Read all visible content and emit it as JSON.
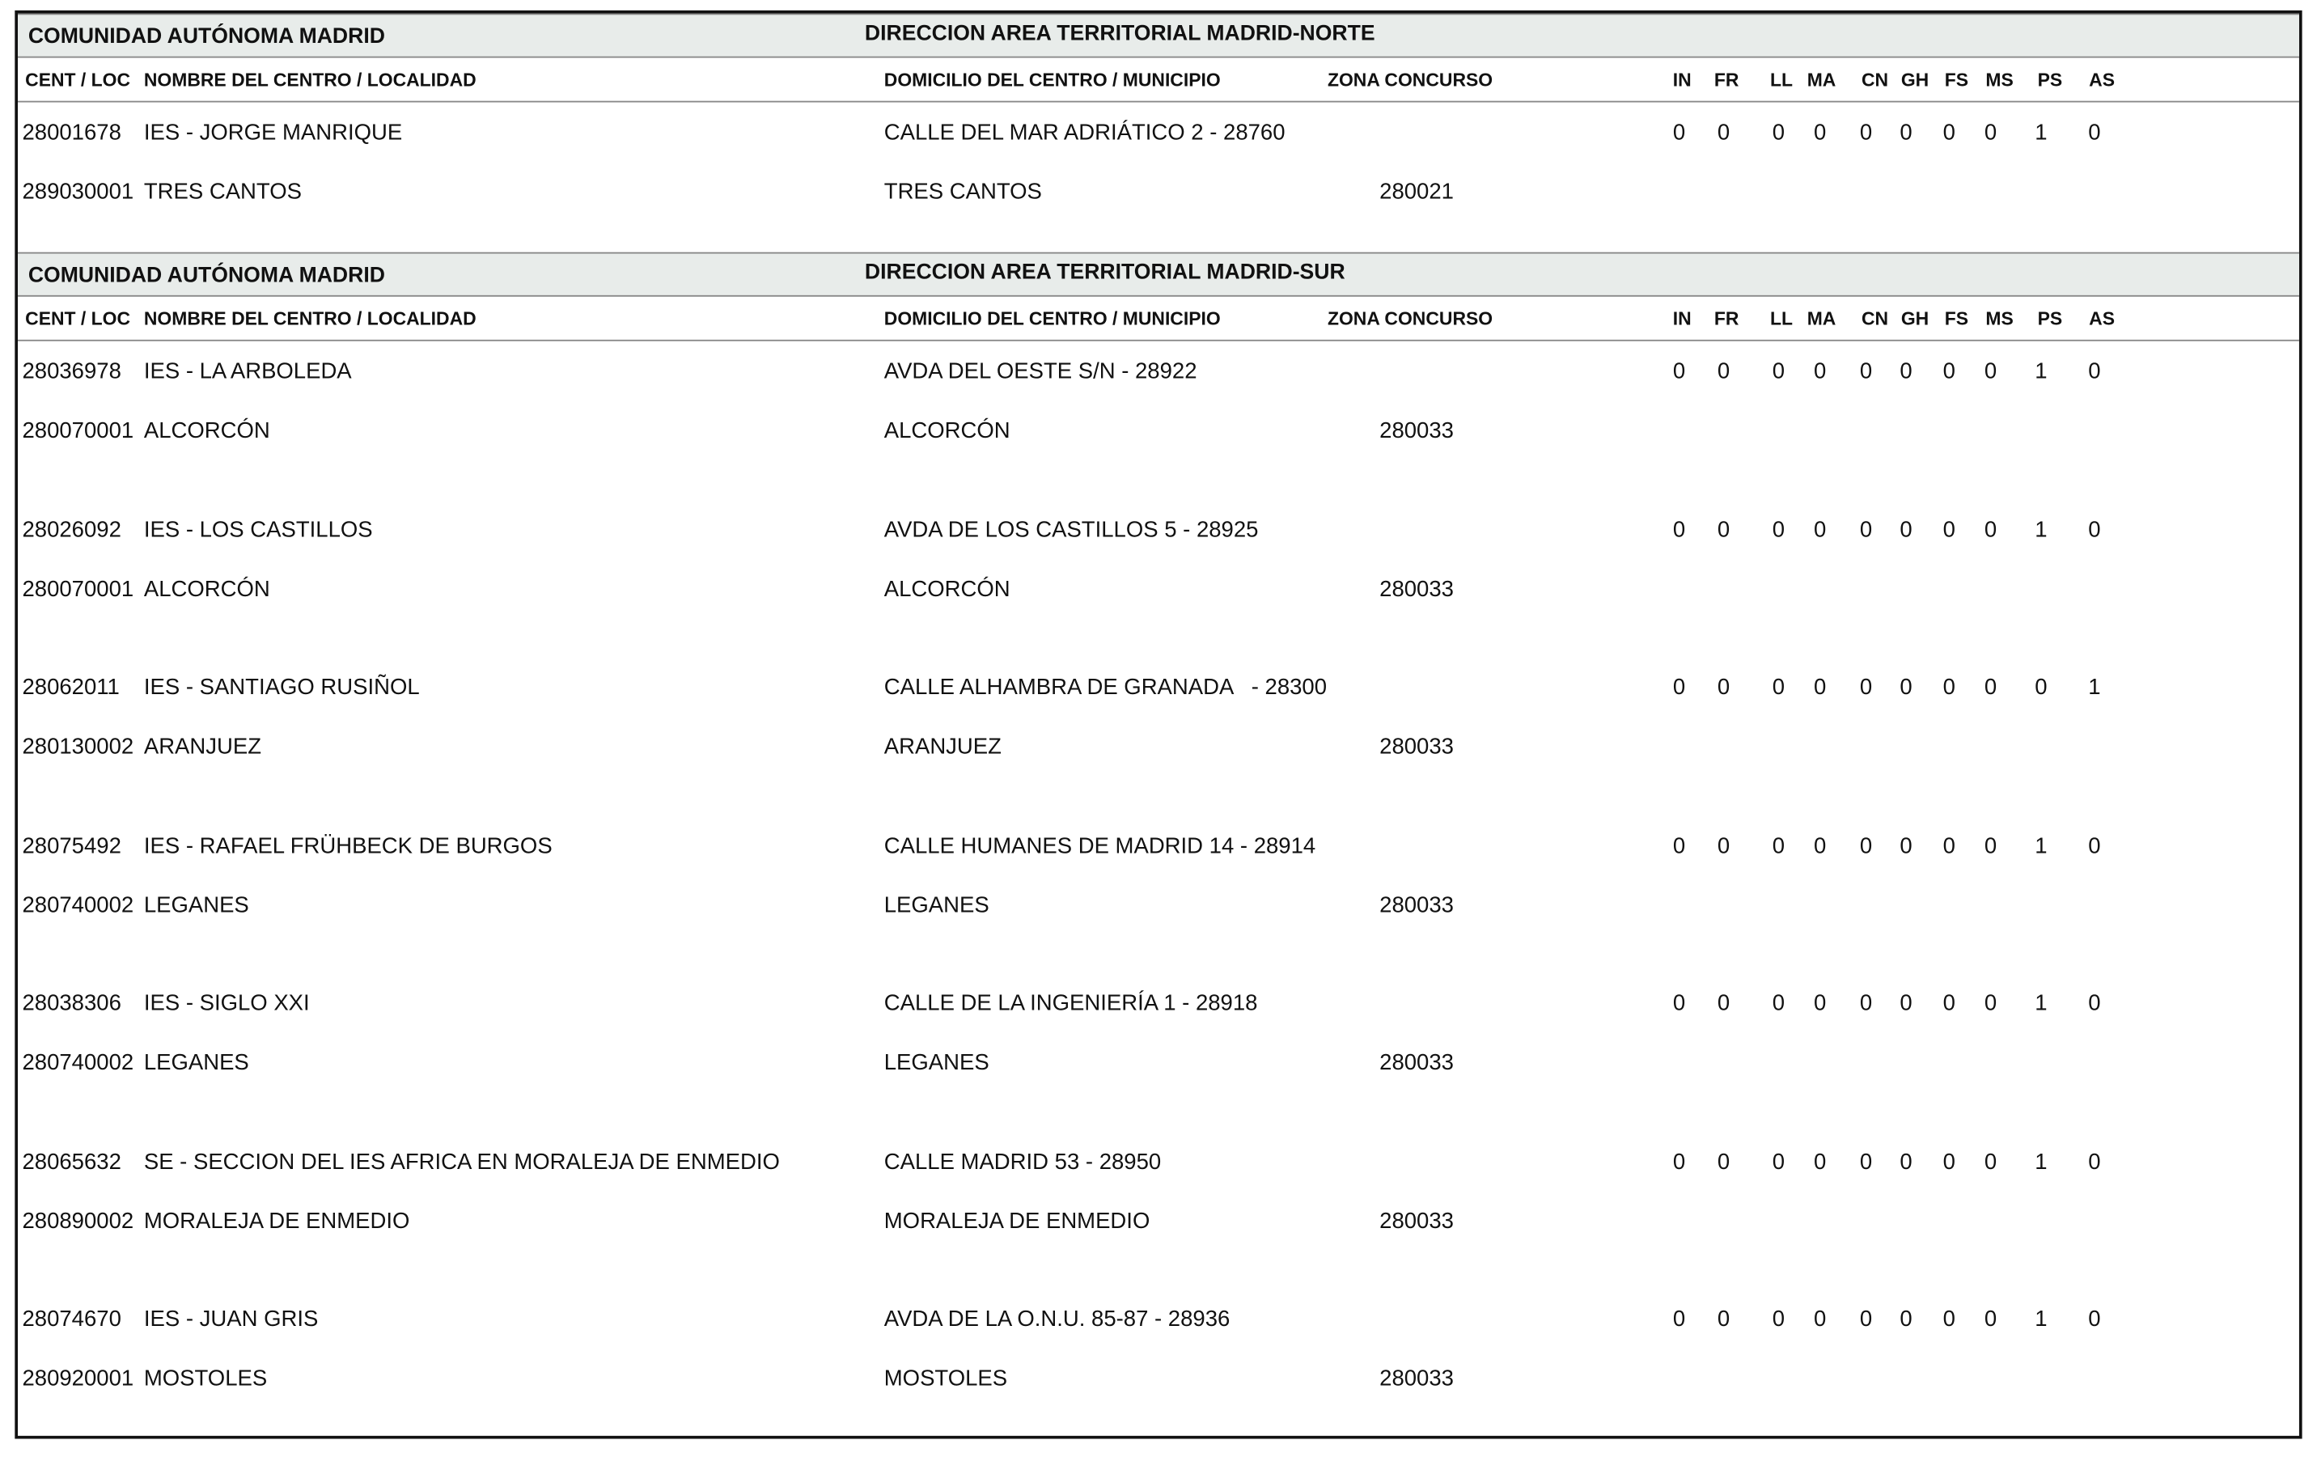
{
  "sections": [
    {
      "title": "COMUNIDAD AUTÓNOMA MADRID",
      "direction": "DIRECCION AREA TERRITORIAL MADRID-NORTE",
      "columns": [
        "CENT / LOC",
        "NOMBRE DEL CENTRO / LOCALIDAD",
        "DOMICILIO DEL CENTRO / MUNICIPIO",
        "ZONA CONCURSO",
        "IN",
        "FR",
        "LL",
        "MA",
        "CN",
        "GH",
        "FS",
        "MS",
        "PS",
        "AS"
      ],
      "entries": [
        {
          "code": "28001678",
          "name": "IES - JORGE MANRIQUE",
          "address": "CALLE DEL MAR ADRIÁTICO 2 - 28760",
          "values": [
            0,
            0,
            0,
            0,
            0,
            0,
            0,
            0,
            1,
            0
          ],
          "loc_code": "289030001",
          "locality": "TRES CANTOS",
          "municipality": "TRES CANTOS",
          "zone": "280021"
        }
      ]
    },
    {
      "title": "COMUNIDAD AUTÓNOMA MADRID",
      "direction": "DIRECCION AREA TERRITORIAL MADRID-SUR",
      "columns": [
        "CENT / LOC",
        "NOMBRE DEL CENTRO / LOCALIDAD",
        "DOMICILIO DEL CENTRO / MUNICIPIO",
        "ZONA CONCURSO",
        "IN",
        "FR",
        "LL",
        "MA",
        "CN",
        "GH",
        "FS",
        "MS",
        "PS",
        "AS"
      ],
      "entries": [
        {
          "code": "28036978",
          "name": "IES - LA ARBOLEDA",
          "address": "AVDA DEL OESTE S/N - 28922",
          "values": [
            0,
            0,
            0,
            0,
            0,
            0,
            0,
            0,
            1,
            0
          ],
          "loc_code": "280070001",
          "locality": "ALCORCÓN",
          "municipality": "ALCORCÓN",
          "zone": "280033"
        },
        {
          "code": "28026092",
          "name": "IES - LOS CASTILLOS",
          "address": "AVDA DE LOS CASTILLOS 5 - 28925",
          "values": [
            0,
            0,
            0,
            0,
            0,
            0,
            0,
            0,
            1,
            0
          ],
          "loc_code": "280070001",
          "locality": "ALCORCÓN",
          "municipality": "ALCORCÓN",
          "zone": "280033"
        },
        {
          "code": "28062011",
          "name": "IES - SANTIAGO RUSIÑOL",
          "address": "CALLE ALHAMBRA DE GRANADA   - 28300",
          "values": [
            0,
            0,
            0,
            0,
            0,
            0,
            0,
            0,
            0,
            1
          ],
          "loc_code": "280130002",
          "locality": "ARANJUEZ",
          "municipality": "ARANJUEZ",
          "zone": "280033"
        },
        {
          "code": "28075492",
          "name": "IES - RAFAEL FRÜHBECK DE BURGOS",
          "address": "CALLE HUMANES DE MADRID 14 - 28914",
          "values": [
            0,
            0,
            0,
            0,
            0,
            0,
            0,
            0,
            1,
            0
          ],
          "loc_code": "280740002",
          "locality": "LEGANES",
          "municipality": "LEGANES",
          "zone": "280033"
        },
        {
          "code": "28038306",
          "name": "IES - SIGLO XXI",
          "address": "CALLE DE LA INGENIERÍA 1 - 28918",
          "values": [
            0,
            0,
            0,
            0,
            0,
            0,
            0,
            0,
            1,
            0
          ],
          "loc_code": "280740002",
          "locality": "LEGANES",
          "municipality": "LEGANES",
          "zone": "280033"
        },
        {
          "code": "28065632",
          "name": "SE - SECCION DEL IES AFRICA EN MORALEJA DE ENMEDIO",
          "address": "CALLE MADRID 53 - 28950",
          "values": [
            0,
            0,
            0,
            0,
            0,
            0,
            0,
            0,
            1,
            0
          ],
          "loc_code": "280890002",
          "locality": "MORALEJA DE ENMEDIO",
          "municipality": "MORALEJA DE ENMEDIO",
          "zone": "280033"
        },
        {
          "code": "28074670",
          "name": "IES - JUAN GRIS",
          "address": "AVDA DE LA O.N.U. 85-87 - 28936",
          "values": [
            0,
            0,
            0,
            0,
            0,
            0,
            0,
            0,
            1,
            0
          ],
          "loc_code": "280920001",
          "locality": "MOSTOLES",
          "municipality": "MOSTOLES",
          "zone": "280033"
        }
      ]
    }
  ]
}
